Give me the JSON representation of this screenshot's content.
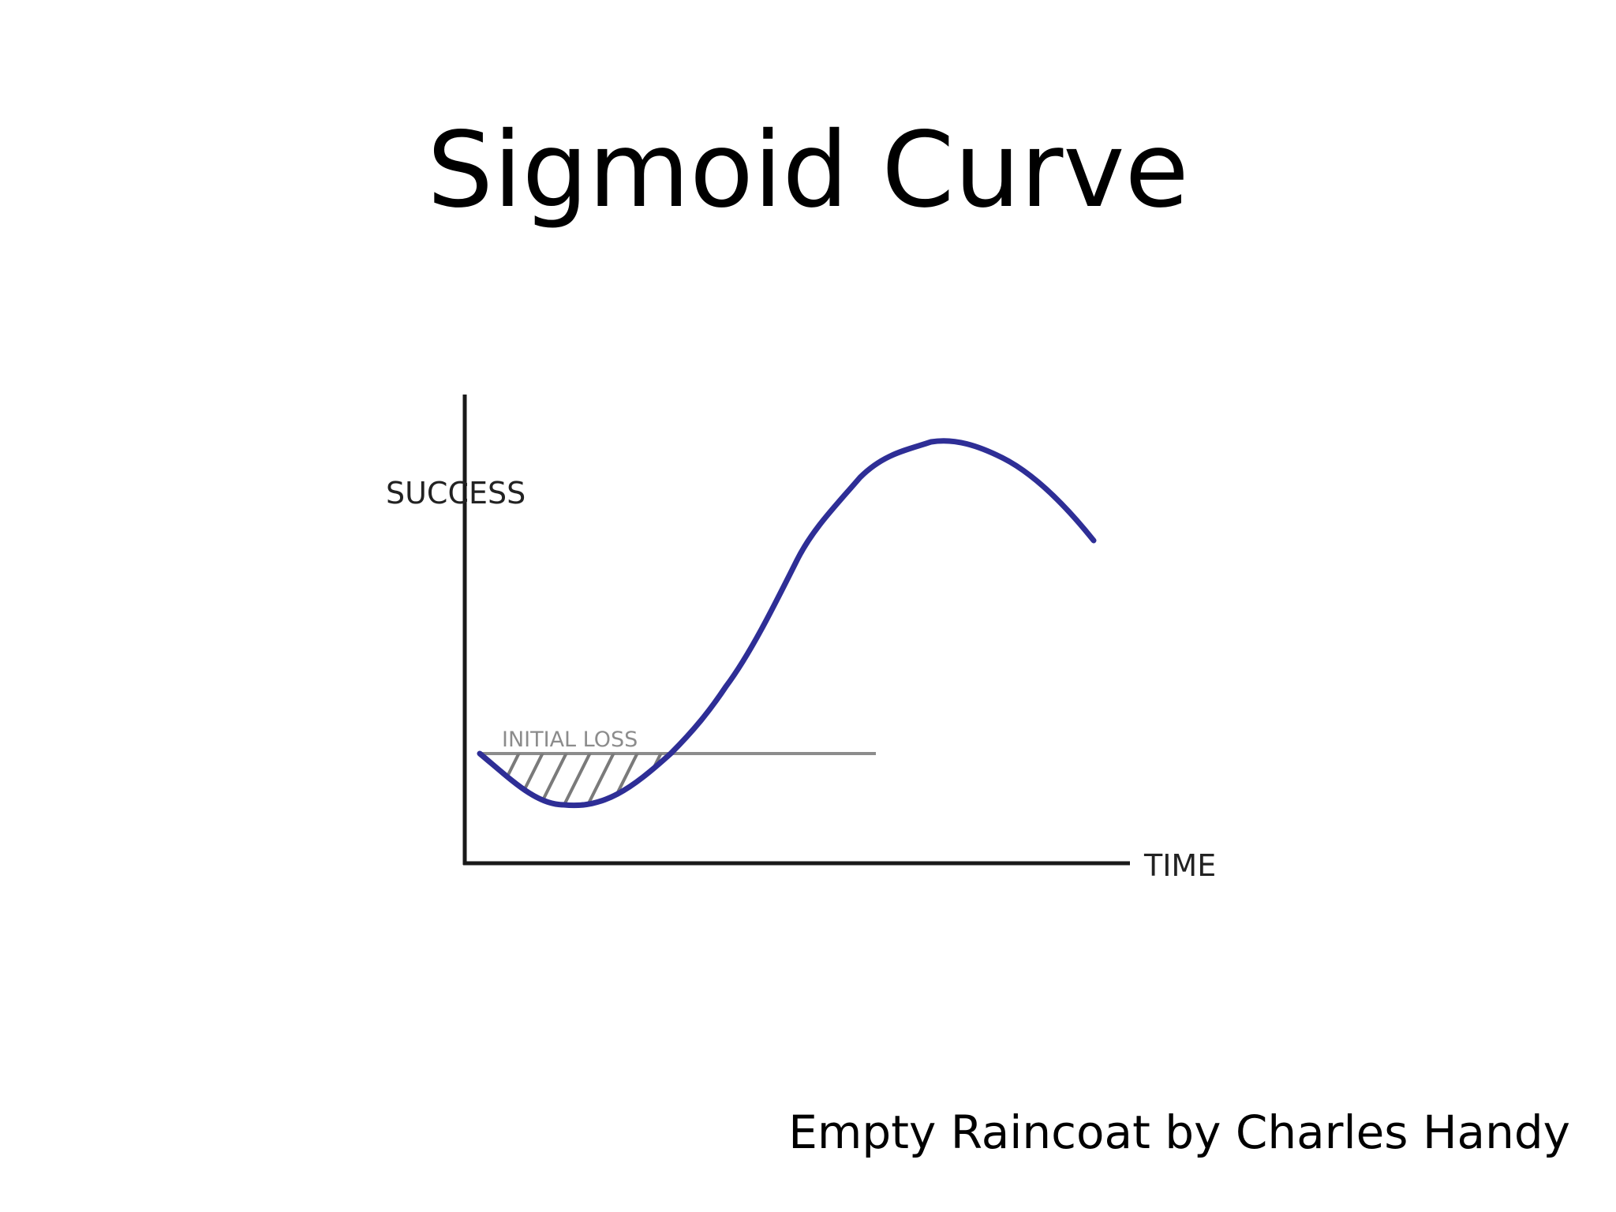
{
  "slide": {
    "title": "Sigmoid Curve",
    "credit": "Empty Raincoat by Charles Handy"
  },
  "diagram": {
    "y_axis_label": "SUCCESS",
    "x_axis_label": "TIME",
    "baseline_label": "INITIAL LOSS",
    "curve_color": "#2e2e96",
    "axis_color": "#1a1a1a",
    "baseline_color": "#8c8c8c",
    "hatch_color": "#7a7a7a"
  }
}
